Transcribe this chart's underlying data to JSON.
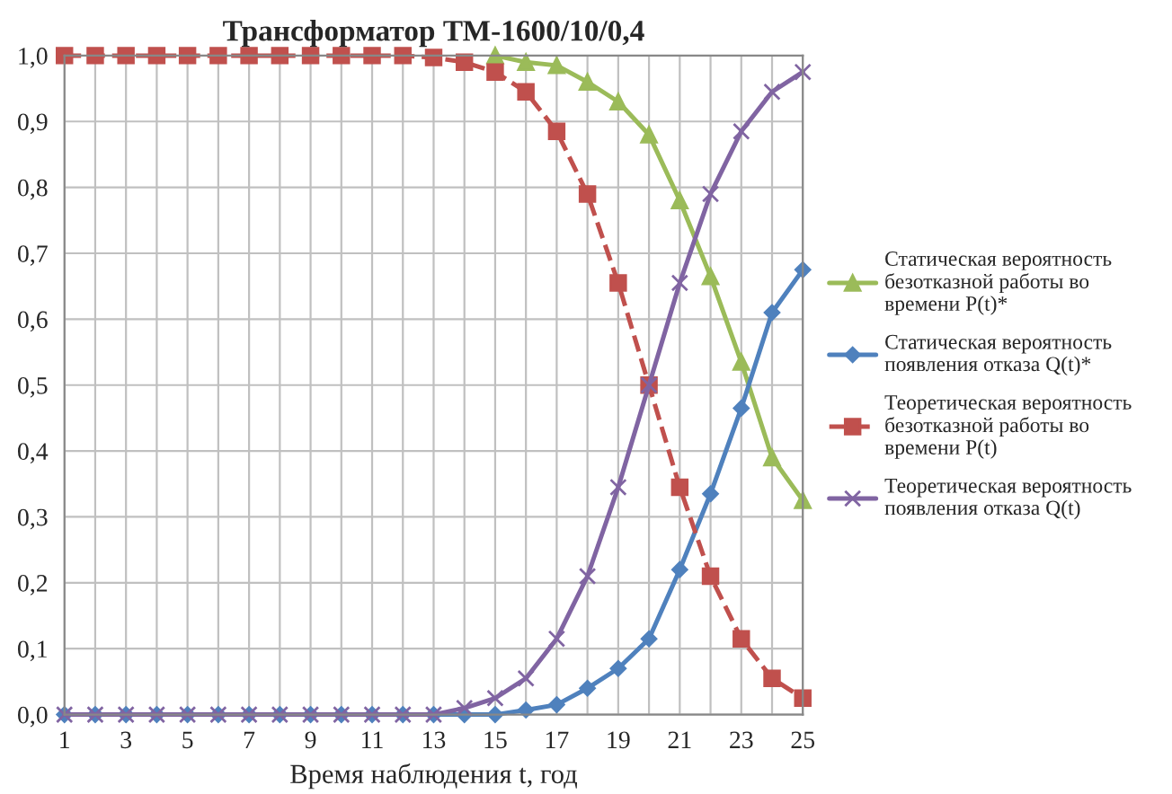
{
  "chart_data": {
    "type": "line",
    "title": "Трансформатор ТМ-1600/10/0,4",
    "xlabel": "Время наблюдения t, год",
    "x": [
      1,
      2,
      3,
      4,
      5,
      6,
      7,
      8,
      9,
      10,
      11,
      12,
      13,
      14,
      15,
      16,
      17,
      18,
      19,
      20,
      21,
      22,
      23,
      24,
      25
    ],
    "xlim": [
      1,
      25
    ],
    "xticks": [
      1,
      {
        "value": 2,
        "label": null
      },
      3,
      {
        "value": 4,
        "label": null
      },
      5,
      {
        "value": 6,
        "label": null
      },
      7,
      {
        "value": 8,
        "label": null
      },
      9,
      {
        "value": 10,
        "label": null
      },
      11,
      {
        "value": 12,
        "label": null
      },
      13,
      {
        "value": 14,
        "label": null
      },
      15,
      {
        "value": 16,
        "label": null
      },
      17,
      {
        "value": 18,
        "label": null
      },
      19,
      {
        "value": 20,
        "label": null
      },
      21,
      {
        "value": 22,
        "label": null
      },
      23,
      {
        "value": 24,
        "label": null
      },
      25
    ],
    "ylim": [
      0,
      1
    ],
    "yticks": [
      {
        "value": 0,
        "label": "0,0"
      },
      {
        "value": 0.1,
        "label": "0,1"
      },
      {
        "value": 0.2,
        "label": "0,2"
      },
      {
        "value": 0.3,
        "label": "0,3"
      },
      {
        "value": 0.4,
        "label": "0,4"
      },
      {
        "value": 0.5,
        "label": "0,5"
      },
      {
        "value": 0.6,
        "label": "0,6"
      },
      {
        "value": 0.7,
        "label": "0,7"
      },
      {
        "value": 0.8,
        "label": "0,8"
      },
      {
        "value": 0.9,
        "label": "0,9"
      },
      {
        "value": 1,
        "label": "1,0"
      }
    ],
    "grid": true,
    "legend": "right",
    "series": [
      {
        "name": "Статическая вероятность безотказной работы во времени P(t)*",
        "color": "#9bbb59",
        "marker": "triangle",
        "line_style": "solid",
        "values": [
          null,
          null,
          null,
          null,
          null,
          null,
          null,
          null,
          null,
          null,
          null,
          null,
          null,
          null,
          1.0,
          0.99,
          0.985,
          0.96,
          0.93,
          0.88,
          0.78,
          0.665,
          0.535,
          0.39,
          0.325
        ]
      },
      {
        "name": "Статическая вероятность появления отказа Q(t)*",
        "color": "#4f81bd",
        "marker": "diamond",
        "line_style": "solid",
        "values": [
          0,
          0,
          0,
          0,
          0,
          0,
          0,
          0,
          0,
          0,
          0,
          0,
          0,
          0,
          0,
          0.007,
          0.015,
          0.04,
          0.07,
          0.115,
          0.22,
          0.335,
          0.465,
          0.61,
          0.675
        ]
      },
      {
        "name": "Теоретическая вероятность безотказной работы во времени P(t)",
        "color": "#c0504d",
        "marker": "square",
        "line_style": "dashed",
        "values": [
          1,
          1,
          1,
          1,
          1,
          1,
          1,
          1,
          1,
          1,
          1,
          1,
          0.997,
          0.99,
          0.975,
          0.945,
          0.885,
          0.79,
          0.655,
          0.5,
          0.345,
          0.21,
          0.115,
          0.055,
          0.025
        ]
      },
      {
        "name": "Теоретическая вероятность появления отказа Q(t)",
        "color": "#8064a2",
        "marker": "cross",
        "line_style": "solid",
        "values": [
          0,
          0,
          0,
          0,
          0,
          0,
          0,
          0,
          0,
          0,
          0,
          0,
          0,
          0.01,
          0.025,
          0.055,
          0.115,
          0.21,
          0.345,
          0.5,
          0.655,
          0.79,
          0.885,
          0.945,
          0.975
        ]
      }
    ]
  }
}
